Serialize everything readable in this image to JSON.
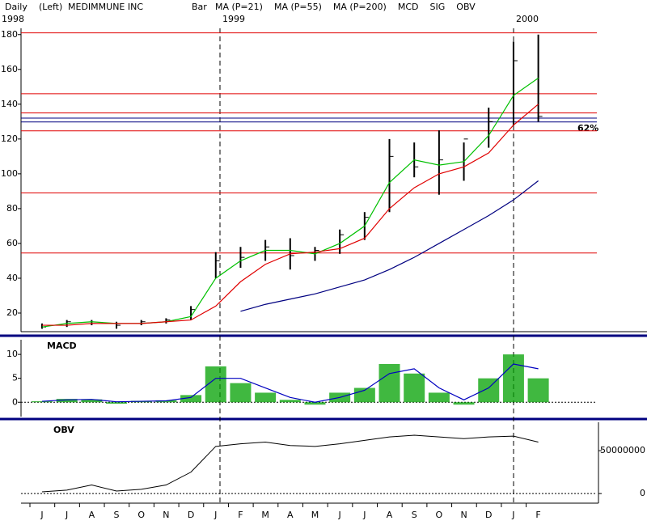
{
  "header": {
    "items": [
      "Daily",
      "(Left)",
      "MEDIMMUNE INC",
      "Bar"
    ]
  },
  "chart_data": [
    {
      "type": "hlc",
      "years": [
        "1998",
        "1999",
        "2000"
      ],
      "categories": [
        "J",
        "J",
        "A",
        "S",
        "O",
        "N",
        "D",
        "J",
        "F",
        "M",
        "A",
        "M",
        "J",
        "J",
        "A",
        "S",
        "O",
        "N",
        "D",
        "J",
        "F"
      ],
      "high": [
        14,
        16,
        16,
        15,
        16,
        17,
        24,
        55,
        58,
        62,
        63,
        58,
        68,
        78,
        120,
        118,
        125,
        118,
        138,
        176,
        180
      ],
      "low": [
        11,
        12,
        13,
        11,
        13,
        14,
        16,
        40,
        46,
        50,
        45,
        50,
        54,
        62,
        78,
        98,
        88,
        96,
        115,
        128,
        130
      ],
      "close": [
        12,
        15,
        14,
        13,
        15,
        16,
        22,
        50,
        52,
        58,
        53,
        56,
        65,
        75,
        110,
        104,
        108,
        120,
        130,
        165,
        133
      ],
      "bar_color": "#000000",
      "series": [
        {
          "name": "MA (P=21)",
          "color": "#00c000",
          "values": [
            12,
            14,
            15,
            14,
            14,
            15,
            18,
            40,
            50,
            56,
            56,
            54,
            60,
            70,
            95,
            108,
            105,
            107,
            122,
            145,
            155
          ]
        },
        {
          "name": "MA (P=55)",
          "color": "#e00000",
          "values": [
            13,
            13,
            14,
            14,
            14,
            15,
            16,
            24,
            38,
            48,
            54,
            55,
            57,
            63,
            80,
            92,
            100,
            104,
            112,
            128,
            140
          ]
        },
        {
          "name": "MA (P=200)",
          "color": "#000080",
          "values": [
            null,
            null,
            null,
            null,
            null,
            null,
            null,
            null,
            21,
            25,
            28,
            31,
            35,
            39,
            45,
            52,
            60,
            68,
            76,
            85,
            96
          ]
        }
      ],
      "levels": [
        {
          "value": 181,
          "color": "#e00000"
        },
        {
          "value": 146,
          "color": "#e00000"
        },
        {
          "value": 135,
          "color": "#e00000"
        },
        {
          "value": 132,
          "color": "#000080"
        },
        {
          "value": 129.8,
          "color": "#000080"
        },
        {
          "value": 124.7,
          "color": "#e00000"
        },
        {
          "value": 89,
          "color": "#e00000"
        },
        {
          "value": 54.5,
          "color": "#e00000"
        }
      ],
      "annotation": "62%",
      "ylim": [
        10,
        185
      ],
      "yticks": [
        20,
        40,
        60,
        80,
        100,
        120,
        140,
        160,
        180
      ]
    },
    {
      "type": "macd",
      "title": "MACD",
      "series": [
        {
          "name": "MCD",
          "color": "#00a000",
          "values": [
            0.2,
            0.7,
            0.6,
            -0.3,
            0.3,
            0.4,
            1.5,
            7.5,
            4,
            2,
            0.5,
            -0.5,
            2,
            3,
            8,
            6,
            2,
            -0.5,
            5,
            10,
            5
          ]
        },
        {
          "name": "SIG",
          "color": "#0000c0",
          "values": [
            0.2,
            0.5,
            0.6,
            0.1,
            0.2,
            0.3,
            1,
            5,
            5,
            3,
            1,
            0,
            1,
            2.5,
            6,
            7,
            3,
            0.5,
            3,
            8,
            7
          ]
        }
      ],
      "ylim": [
        -3,
        13.4
      ],
      "yticks": [
        0,
        5,
        10
      ]
    },
    {
      "type": "obv",
      "title": "OBV",
      "series": [
        {
          "name": "OBV",
          "color": "#000000",
          "values": [
            2000000,
            4000000,
            10000000,
            3000000,
            5000000,
            10000000,
            25000000,
            55000000,
            58000000,
            60000000,
            56000000,
            55000000,
            58000000,
            62000000,
            66000000,
            68000000,
            66000000,
            64000000,
            66000000,
            67000000,
            60000000
          ]
        }
      ],
      "ylim": [
        -14000000,
        85000000
      ],
      "yticks": [
        0,
        50000000
      ]
    }
  ]
}
